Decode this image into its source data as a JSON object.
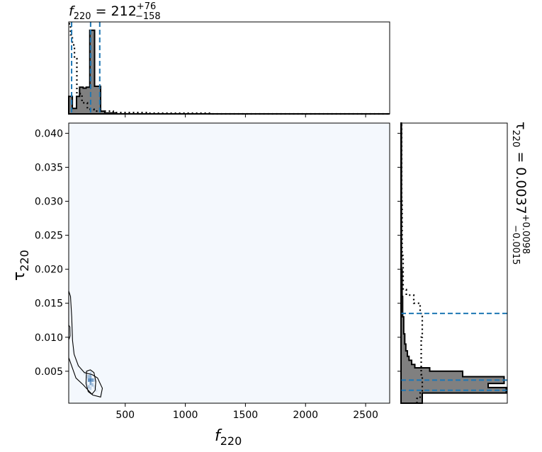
{
  "titles": {
    "f220": {
      "symbol": "f",
      "sub": "220",
      "eq": " = ",
      "value": "212",
      "sup": "+76",
      "subval": "−158"
    },
    "tau220": {
      "symbol": "τ",
      "sub": "220",
      "eq": " = ",
      "value": "0.0037",
      "sup": "+0.0098",
      "subval": "−0.0015"
    }
  },
  "axis_labels": {
    "x": {
      "symbol": "f",
      "sub": "220"
    },
    "y": {
      "symbol": "τ",
      "sub": "220"
    }
  },
  "colors": {
    "hist_fill": "#808080",
    "hist_edge": "#000000",
    "quantile_line": "#1f77b4",
    "density_low": "#f4f8fd",
    "density_high": "#08519c"
  },
  "chart_data": [
    {
      "type": "heatmap",
      "panel": "joint",
      "xlabel": "f220",
      "ylabel": "tau220",
      "xlim": [
        30,
        2700
      ],
      "ylim": [
        0.0003,
        0.0415
      ],
      "xticks": [
        {
          "value": 500,
          "label": "500"
        },
        {
          "value": 1000,
          "label": "1000"
        },
        {
          "value": 1500,
          "label": "1500"
        },
        {
          "value": 2000,
          "label": "2000"
        },
        {
          "value": 2500,
          "label": "2500"
        }
      ],
      "yticks": [
        {
          "value": 0.005,
          "label": "0.005"
        },
        {
          "value": 0.01,
          "label": "0.010"
        },
        {
          "value": 0.015,
          "label": "0.015"
        },
        {
          "value": 0.02,
          "label": "0.020"
        },
        {
          "value": 0.025,
          "label": "0.025"
        },
        {
          "value": 0.03,
          "label": "0.030"
        },
        {
          "value": 0.035,
          "label": "0.035"
        },
        {
          "value": 0.04,
          "label": "0.040"
        }
      ],
      "density_peak": {
        "x": 212,
        "y": 0.0037
      },
      "contour_outer": [
        [
          30,
          0.0168
        ],
        [
          45,
          0.016
        ],
        [
          55,
          0.013
        ],
        [
          62,
          0.0095
        ],
        [
          75,
          0.0075
        ],
        [
          110,
          0.0058
        ],
        [
          160,
          0.0048
        ],
        [
          225,
          0.0045
        ],
        [
          270,
          0.004
        ],
        [
          310,
          0.0025
        ],
        [
          295,
          0.0012
        ],
        [
          230,
          0.0015
        ],
        [
          150,
          0.003
        ],
        [
          90,
          0.004
        ],
        [
          50,
          0.006
        ],
        [
          30,
          0.007
        ]
      ],
      "contour_inner": [
        [
          178,
          0.005
        ],
        [
          210,
          0.0052
        ],
        [
          240,
          0.0048
        ],
        [
          255,
          0.0035
        ],
        [
          250,
          0.0022
        ],
        [
          222,
          0.0016
        ],
        [
          192,
          0.002
        ],
        [
          174,
          0.0032
        ]
      ],
      "contour_small": [
        [
          30,
          0.0118
        ],
        [
          40,
          0.0115
        ],
        [
          42,
          0.0102
        ],
        [
          34,
          0.0098
        ],
        [
          30,
          0.01
        ]
      ],
      "density_cells": [
        {
          "x": 212,
          "y": 0.0037,
          "w": 0.72
        },
        {
          "x": 196,
          "y": 0.0037,
          "w": 0.6
        },
        {
          "x": 228,
          "y": 0.0037,
          "w": 0.55
        },
        {
          "x": 212,
          "y": 0.0032,
          "w": 0.5
        },
        {
          "x": 212,
          "y": 0.0042,
          "w": 0.45
        },
        {
          "x": 196,
          "y": 0.0042,
          "w": 0.35
        },
        {
          "x": 228,
          "y": 0.003,
          "w": 0.32
        },
        {
          "x": 196,
          "y": 0.0027,
          "w": 0.3
        },
        {
          "x": 244,
          "y": 0.0037,
          "w": 0.22
        },
        {
          "x": 180,
          "y": 0.0042,
          "w": 0.2
        },
        {
          "x": 212,
          "y": 0.0025,
          "w": 0.22
        },
        {
          "x": 212,
          "y": 0.0047,
          "w": 0.22
        },
        {
          "x": 244,
          "y": 0.0027,
          "w": 0.14
        },
        {
          "x": 180,
          "y": 0.0032,
          "w": 0.14
        },
        {
          "x": 160,
          "y": 0.0047,
          "w": 0.08
        },
        {
          "x": 260,
          "y": 0.0022,
          "w": 0.09
        },
        {
          "x": 130,
          "y": 0.005,
          "w": 0.05
        },
        {
          "x": 100,
          "y": 0.0058,
          "w": 0.04
        },
        {
          "x": 70,
          "y": 0.008,
          "w": 0.04
        },
        {
          "x": 300,
          "y": 0.0015,
          "w": 0.03
        }
      ]
    },
    {
      "type": "histogram",
      "panel": "top",
      "variable": "f220",
      "xlim": [
        30,
        2700
      ],
      "bins": [
        {
          "x0": 30,
          "x1": 60,
          "y": 0.19
        },
        {
          "x0": 60,
          "x1": 95,
          "y": 0.06
        },
        {
          "x0": 95,
          "x1": 120,
          "y": 0.19
        },
        {
          "x0": 120,
          "x1": 150,
          "y": 0.29
        },
        {
          "x0": 150,
          "x1": 175,
          "y": 0.28
        },
        {
          "x0": 175,
          "x1": 205,
          "y": 0.29
        },
        {
          "x0": 205,
          "x1": 245,
          "y": 0.91
        },
        {
          "x0": 245,
          "x1": 295,
          "y": 0.3
        },
        {
          "x0": 295,
          "x1": 330,
          "y": 0.03
        },
        {
          "x0": 330,
          "x1": 420,
          "y": 0.01
        },
        {
          "x0": 420,
          "x1": 2700,
          "y": 0.0
        }
      ],
      "prior_dotted": [
        [
          30,
          0.98
        ],
        [
          45,
          0.98
        ],
        [
          45,
          0.86
        ],
        [
          60,
          0.86
        ],
        [
          60,
          0.75
        ],
        [
          78,
          0.75
        ],
        [
          78,
          0.6
        ],
        [
          98,
          0.6
        ],
        [
          98,
          0.22
        ],
        [
          140,
          0.22
        ],
        [
          140,
          0.12
        ],
        [
          185,
          0.12
        ],
        [
          185,
          0.05
        ],
        [
          240,
          0.05
        ],
        [
          240,
          0.03
        ],
        [
          400,
          0.03
        ],
        [
          400,
          0.015
        ],
        [
          700,
          0.015
        ],
        [
          700,
          0.008
        ],
        [
          1200,
          0.008
        ],
        [
          1200,
          0.0
        ],
        [
          2700,
          0.0
        ]
      ],
      "quantile_lines": [
        54,
        212,
        288
      ]
    },
    {
      "type": "histogram",
      "panel": "right",
      "variable": "tau220",
      "orientation": "horizontal",
      "ylim": [
        0.0003,
        0.0415
      ],
      "bins": [
        {
          "y0": 0.0003,
          "y1": 0.0018,
          "x": 0.2
        },
        {
          "y0": 0.0018,
          "y1": 0.0026,
          "x": 0.99
        },
        {
          "y0": 0.0026,
          "y1": 0.0032,
          "x": 0.82
        },
        {
          "y0": 0.0032,
          "y1": 0.0042,
          "x": 0.97
        },
        {
          "y0": 0.0042,
          "y1": 0.005,
          "x": 0.58
        },
        {
          "y0": 0.005,
          "y1": 0.0055,
          "x": 0.27
        },
        {
          "y0": 0.0055,
          "y1": 0.006,
          "x": 0.13
        },
        {
          "y0": 0.006,
          "y1": 0.0066,
          "x": 0.1
        },
        {
          "y0": 0.0066,
          "y1": 0.0072,
          "x": 0.075
        },
        {
          "y0": 0.0072,
          "y1": 0.008,
          "x": 0.06
        },
        {
          "y0": 0.008,
          "y1": 0.009,
          "x": 0.045
        },
        {
          "y0": 0.009,
          "y1": 0.0105,
          "x": 0.035
        },
        {
          "y0": 0.0105,
          "y1": 0.013,
          "x": 0.025
        },
        {
          "y0": 0.013,
          "y1": 0.016,
          "x": 0.015
        },
        {
          "y0": 0.016,
          "y1": 0.02,
          "x": 0.01
        },
        {
          "y0": 0.02,
          "y1": 0.0415,
          "x": 0.004
        }
      ],
      "prior_dotted": [
        [
          0.15,
          0.0003
        ],
        [
          0.15,
          0.001
        ],
        [
          0.18,
          0.001
        ],
        [
          0.18,
          0.0018
        ],
        [
          0.2,
          0.0018
        ],
        [
          0.2,
          0.0045
        ],
        [
          0.19,
          0.0045
        ],
        [
          0.19,
          0.01
        ],
        [
          0.2,
          0.01
        ],
        [
          0.2,
          0.0135
        ],
        [
          0.18,
          0.0135
        ],
        [
          0.18,
          0.015
        ],
        [
          0.12,
          0.015
        ],
        [
          0.12,
          0.0162
        ],
        [
          0.05,
          0.0162
        ],
        [
          0.05,
          0.017
        ],
        [
          0.02,
          0.017
        ],
        [
          0.02,
          0.022
        ],
        [
          0.01,
          0.022
        ],
        [
          0.01,
          0.03
        ],
        [
          0.006,
          0.03
        ],
        [
          0.006,
          0.0415
        ]
      ],
      "quantile_lines": [
        0.0022,
        0.0037,
        0.0135
      ]
    }
  ]
}
